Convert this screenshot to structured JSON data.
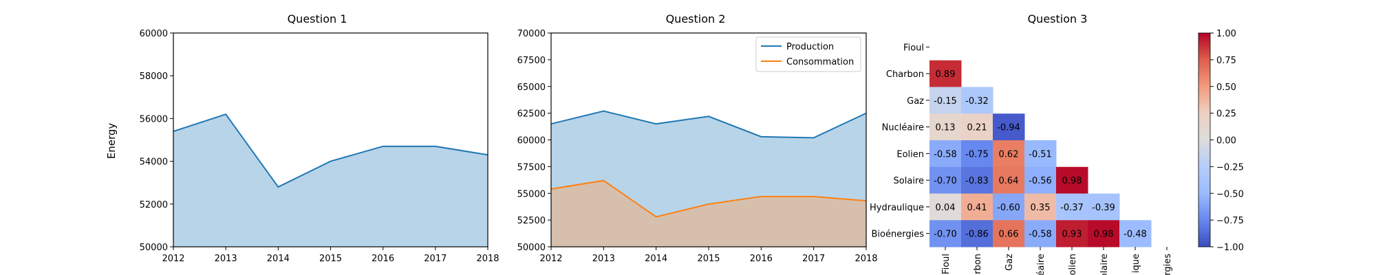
{
  "chart_data": [
    {
      "type": "area",
      "title": "Question 1",
      "ylabel": "Energy",
      "xlabel": "",
      "x": [
        2012,
        2013,
        2014,
        2015,
        2016,
        2017,
        2018
      ],
      "xlim": [
        2012,
        2018
      ],
      "ylim": [
        50000,
        60000
      ],
      "yticks": [
        50000,
        52000,
        54000,
        56000,
        58000,
        60000
      ],
      "series": [
        {
          "values": [
            55400,
            56200,
            52800,
            54000,
            54700,
            54700,
            54300
          ],
          "color": "#1f77b4",
          "fill": "#b8d4e8"
        }
      ],
      "grid": false
    },
    {
      "type": "area",
      "title": "Question 2",
      "xlabel": "",
      "ylabel": "",
      "x": [
        2012,
        2013,
        2014,
        2015,
        2016,
        2017,
        2018
      ],
      "xlim": [
        2012,
        2018
      ],
      "ylim": [
        50000,
        70000
      ],
      "yticks": [
        50000,
        52500,
        55000,
        57500,
        60000,
        62500,
        65000,
        67500,
        70000
      ],
      "legend_position": "top-right",
      "series": [
        {
          "name": "Production",
          "values": [
            61500,
            62700,
            61500,
            62200,
            60300,
            60200,
            62500
          ],
          "color": "#1f77b4",
          "fill": "#b8d4e8"
        },
        {
          "name": "Consommation",
          "values": [
            55400,
            56200,
            52800,
            54000,
            54700,
            54700,
            54300
          ],
          "color": "#ff7f0e",
          "fill": "#d6c0ad"
        }
      ],
      "grid": false
    },
    {
      "type": "heatmap",
      "title": "Question 3",
      "labels": [
        "Fioul",
        "Charbon",
        "Gaz",
        "Nucléaire",
        "Eolien",
        "Solaire",
        "Hydraulique",
        "Bioénergies"
      ],
      "x_tick_labels_visible": [
        "Fioul",
        "rbon",
        "Gaz",
        "éaire",
        "olien",
        "olaire",
        "ique",
        "rgies"
      ],
      "matrix": [
        [
          null,
          null,
          null,
          null,
          null,
          null,
          null,
          null
        ],
        [
          0.89,
          null,
          null,
          null,
          null,
          null,
          null,
          null
        ],
        [
          -0.15,
          -0.32,
          null,
          null,
          null,
          null,
          null,
          null
        ],
        [
          0.13,
          0.21,
          -0.94,
          null,
          null,
          null,
          null,
          null
        ],
        [
          -0.58,
          -0.75,
          0.62,
          -0.51,
          null,
          null,
          null,
          null
        ],
        [
          -0.7,
          -0.83,
          0.64,
          -0.56,
          0.98,
          null,
          null,
          null
        ],
        [
          0.04,
          0.41,
          -0.6,
          0.35,
          -0.37,
          -0.39,
          null,
          null
        ],
        [
          -0.7,
          -0.86,
          0.66,
          -0.58,
          0.93,
          0.98,
          -0.48,
          null
        ]
      ],
      "colorbar": {
        "colormap": "coolwarm",
        "range": [
          -1,
          1
        ],
        "ticks": [
          "1.00",
          "0.75",
          "0.50",
          "0.25",
          "0.00",
          "−0.25",
          "−0.50",
          "−0.75",
          "−1.00"
        ]
      }
    }
  ]
}
